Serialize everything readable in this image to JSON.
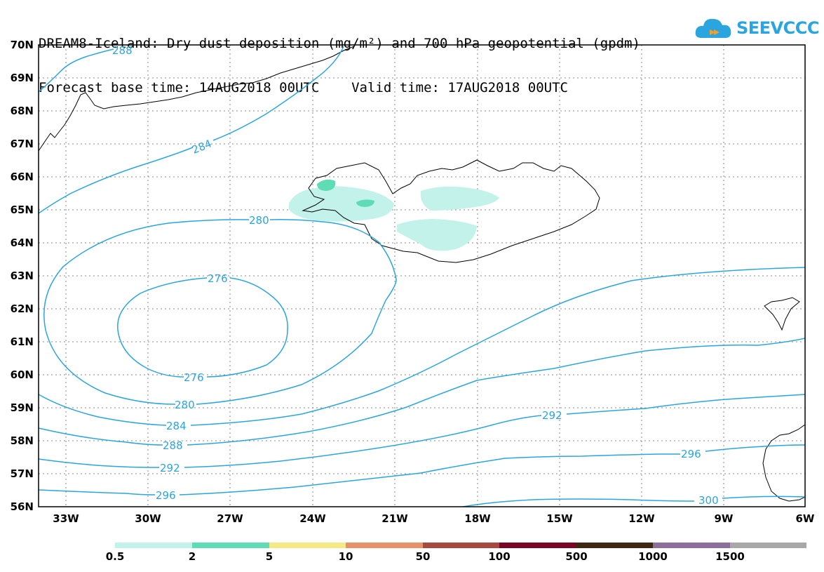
{
  "title": {
    "line1": "DREAM8-Iceland: Dry dust deposition (mg/m²) and 700 hPa geopotential (gpdm)",
    "line2": "Forecast base time: 14AUG2018 00UTC    Valid time: 17AUG2018 00UTC"
  },
  "logo": {
    "text": "SEEVCCC",
    "color": "#2aa5e0"
  },
  "axes": {
    "lat_labels": [
      "70N",
      "69N",
      "68N",
      "67N",
      "66N",
      "65N",
      "64N",
      "63N",
      "62N",
      "61N",
      "60N",
      "59N",
      "58N",
      "57N",
      "56N"
    ],
    "lon_labels": [
      "33W",
      "30W",
      "27W",
      "24W",
      "21W",
      "18W",
      "15W",
      "12W",
      "9W",
      "6W"
    ]
  },
  "contour_labels": {
    "c288_top": "288",
    "c284_top": "284",
    "c280_top": "280",
    "c276_top": "276",
    "c276_bot": "276",
    "c280_bot": "280",
    "c284_bot": "284",
    "c288_bot": "288",
    "c292_left": "292",
    "c292_right": "292",
    "c296_left": "296",
    "c296_right": "296",
    "c300": "300"
  },
  "legend": {
    "labels": [
      "0.5",
      "2",
      "5",
      "10",
      "50",
      "100",
      "500",
      "1000",
      "1500"
    ],
    "colors": [
      "#c2f2ea",
      "#5edcb4",
      "#f5e986",
      "#e8906a",
      "#a8483e",
      "#7a0424",
      "#3e2614",
      "#8e6e9c",
      "#a8a8a8"
    ]
  },
  "colors": {
    "contour": "#2aa5e0",
    "coast": "#000000",
    "dust_low": "#c2f2ea",
    "dust_mid": "#5edcb4"
  }
}
